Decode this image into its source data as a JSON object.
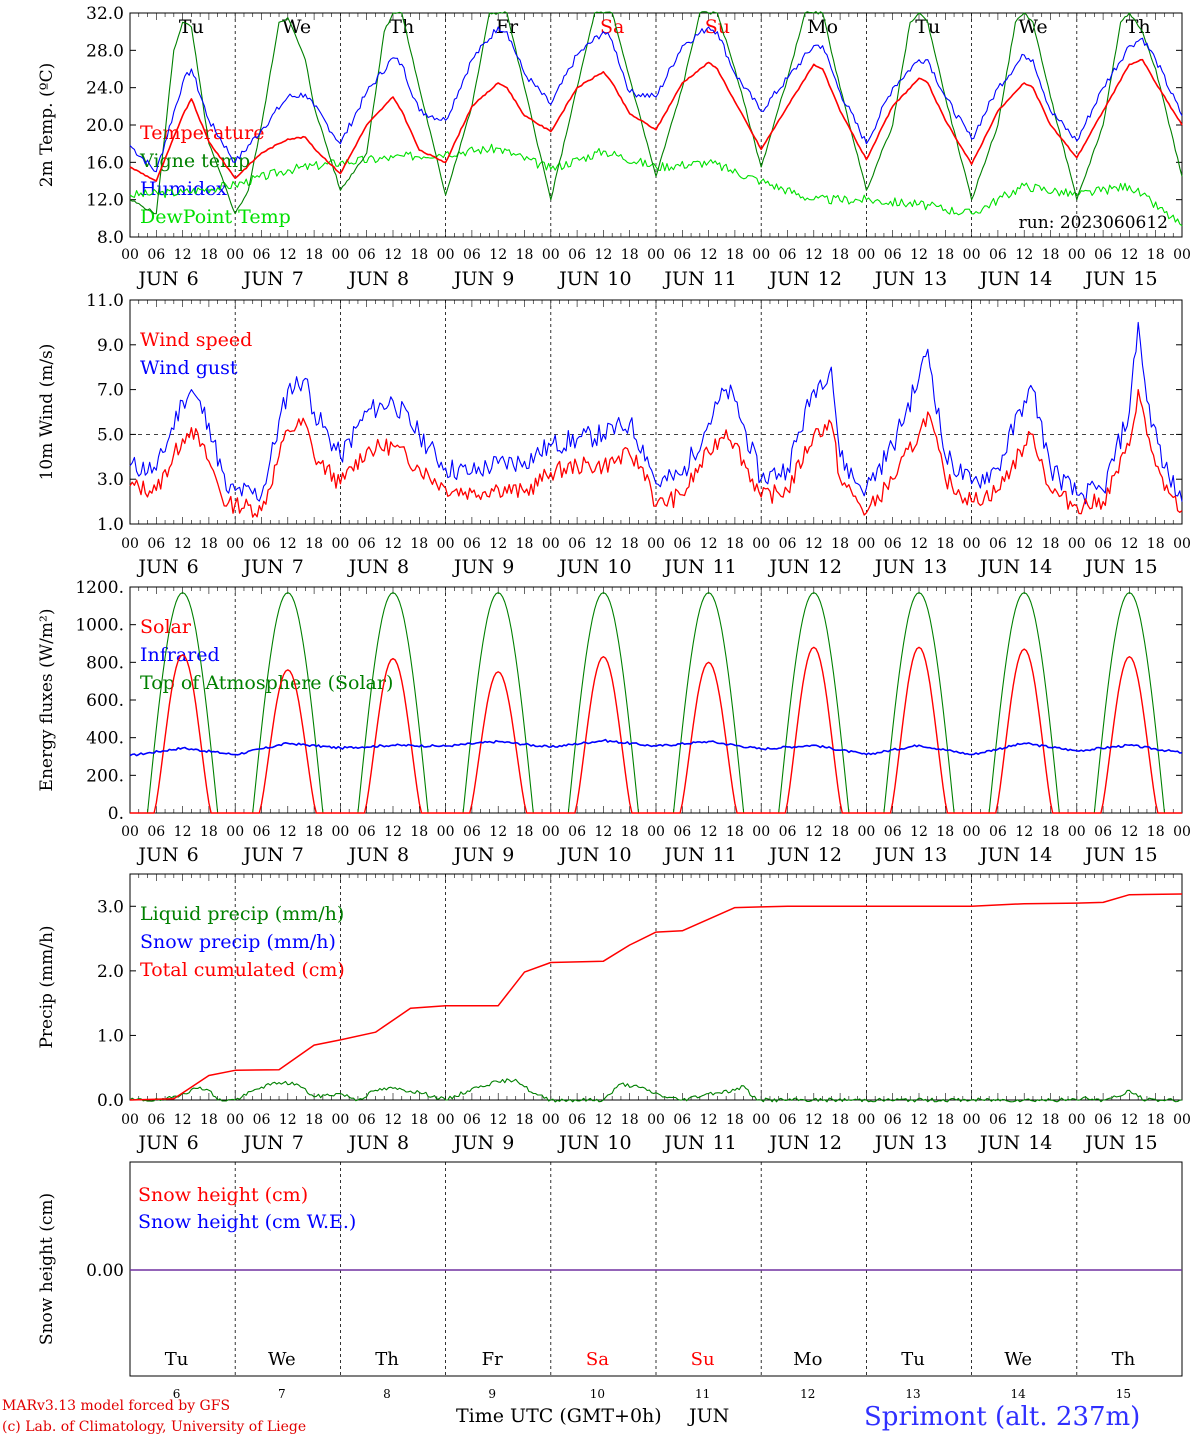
{
  "run_label": "run: 2023060612",
  "colors": {
    "temperature": "#ff0000",
    "vigne": "#008000",
    "humidex": "#0000ff",
    "dewpoint": "#00e000",
    "weekend": "#ff0000",
    "snow_axis_line": "#7030a0"
  },
  "days": [
    "6",
    "7",
    "8",
    "9",
    "10",
    "11",
    "12",
    "13",
    "14",
    "15"
  ],
  "weekdays": [
    "Tu",
    "We",
    "Th",
    "Fr",
    "Sa",
    "Su",
    "Mo",
    "Tu",
    "We",
    "Th"
  ],
  "weekend_flags": [
    false,
    false,
    false,
    false,
    true,
    true,
    false,
    false,
    false,
    false
  ],
  "month": "JUN",
  "hour_ticks": [
    "00",
    "06",
    "12",
    "18"
  ],
  "final_hour": "00",
  "footer": {
    "credit_line1": "MARv3.13 model forced by GFS",
    "credit_line2": "(c) Lab. of Climatology, University of Liege",
    "time_axis": "Time UTC (GMT+0h)",
    "month": "JUN",
    "station": "Sprimont (alt. 237m)"
  },
  "chart_data": [
    {
      "id": "temp",
      "type": "line",
      "ylabel": "2m Temp. (ºC)",
      "ylim": [
        8,
        32
      ],
      "yticks": [
        "8.0",
        "12.0",
        "16.0",
        "20.0",
        "24.0",
        "28.0",
        "32.0"
      ],
      "x_unit": "hours since Jun 6 00 UTC",
      "legend": [
        "Temperature",
        "Vigne temp",
        "Humidex",
        "DewPoint Temp"
      ],
      "series": [
        {
          "name": "Temperature",
          "x": [
            0,
            6,
            12,
            14,
            18,
            24,
            30,
            36,
            40,
            42,
            48,
            54,
            60,
            62,
            66,
            72,
            78,
            84,
            86,
            90,
            96,
            102,
            108,
            110,
            114,
            120,
            126,
            132,
            134,
            138,
            144,
            150,
            156,
            158,
            162,
            168,
            174,
            180,
            182,
            186,
            192,
            198,
            204,
            206,
            210,
            216,
            222,
            228,
            231,
            234,
            240
          ],
          "values": [
            15.5,
            14.0,
            21.0,
            22.8,
            18.2,
            14.3,
            17.0,
            18.5,
            18.7,
            17.5,
            14.8,
            20.0,
            23.0,
            21.5,
            17.3,
            16.0,
            22.0,
            24.5,
            24.0,
            21.0,
            19.3,
            24.0,
            25.7,
            24.5,
            21.2,
            19.5,
            24.5,
            26.7,
            26.0,
            22.5,
            17.4,
            22.0,
            26.5,
            26.0,
            21.5,
            16.3,
            22.0,
            25.0,
            24.5,
            20.5,
            15.8,
            21.5,
            24.5,
            24.0,
            20.0,
            16.5,
            21.5,
            26.5,
            27.0,
            24.5,
            20.0
          ]
        },
        {
          "name": "Humidex",
          "x": [
            0,
            6,
            12,
            14,
            18,
            24,
            30,
            36,
            40,
            42,
            48,
            54,
            60,
            62,
            66,
            72,
            78,
            84,
            86,
            90,
            96,
            102,
            108,
            110,
            114,
            120,
            126,
            132,
            134,
            138,
            144,
            150,
            156,
            158,
            162,
            168,
            174,
            180,
            182,
            186,
            192,
            198,
            204,
            206,
            210,
            216,
            222,
            228,
            231,
            234,
            240
          ],
          "values": [
            17.8,
            15.0,
            24.5,
            26.0,
            20.5,
            16.0,
            19.5,
            23.0,
            23.3,
            22.0,
            18.0,
            23.5,
            27.2,
            26.5,
            21.5,
            20.5,
            27.0,
            30.5,
            30.0,
            25.5,
            22.2,
            27.5,
            30.0,
            29.0,
            23.5,
            23.0,
            28.5,
            30.5,
            30.0,
            25.5,
            21.5,
            25.0,
            28.5,
            28.5,
            23.5,
            18.0,
            24.0,
            27.0,
            27.0,
            23.0,
            18.5,
            24.0,
            27.5,
            27.0,
            21.5,
            18.3,
            24.0,
            28.5,
            29.3,
            27.0,
            21.0
          ]
        },
        {
          "name": "Vigne temp",
          "x": [
            0,
            6,
            10,
            12,
            14,
            18,
            24,
            27,
            30,
            34,
            36,
            40,
            42,
            48,
            54,
            58,
            60,
            62,
            66,
            72,
            78,
            82,
            84,
            86,
            90,
            96,
            102,
            106,
            108,
            110,
            114,
            120,
            126,
            130,
            132,
            134,
            138,
            144,
            150,
            154,
            156,
            158,
            162,
            168,
            174,
            178,
            180,
            182,
            186,
            192,
            198,
            202,
            204,
            206,
            210,
            216,
            222,
            226,
            228,
            231,
            234,
            240
          ],
          "values": [
            12.0,
            10.5,
            28.0,
            31.0,
            30.5,
            18.0,
            10.5,
            13.0,
            20.0,
            31.0,
            31.5,
            27.0,
            22.0,
            13.0,
            17.0,
            30.0,
            32.0,
            32.0,
            24.0,
            12.5,
            22.0,
            32.0,
            32.0,
            32.0,
            24.0,
            12.0,
            24.0,
            32.0,
            32.0,
            32.0,
            25.0,
            14.5,
            24.0,
            32.0,
            32.0,
            32.0,
            26.0,
            15.5,
            25.0,
            32.0,
            32.0,
            32.0,
            24.0,
            13.0,
            20.0,
            31.0,
            32.0,
            31.0,
            23.0,
            12.0,
            20.0,
            31.0,
            32.0,
            31.0,
            23.0,
            12.0,
            20.0,
            31.0,
            32.0,
            30.0,
            26.0,
            14.5
          ]
        },
        {
          "name": "DewPoint Temp",
          "x": [
            0,
            12,
            24,
            36,
            48,
            60,
            72,
            84,
            96,
            108,
            120,
            132,
            144,
            156,
            168,
            180,
            192,
            204,
            216,
            228,
            240
          ],
          "values": [
            12.5,
            12.8,
            13.6,
            15.2,
            16.0,
            16.5,
            17.0,
            17.5,
            15.3,
            17.2,
            15.5,
            16.0,
            14.0,
            12.0,
            12.0,
            11.5,
            10.5,
            13.5,
            12.5,
            13.5,
            9.2
          ]
        }
      ]
    },
    {
      "id": "wind",
      "type": "line",
      "ylabel": "10m Wind (m/s)",
      "ylim": [
        1,
        11
      ],
      "yticks": [
        "1.0",
        "3.0",
        "5.0",
        "7.0",
        "9.0",
        "11.0"
      ],
      "refline": 5.0,
      "legend": [
        "Wind speed",
        "Wind gust"
      ],
      "series": [
        {
          "name": "Wind speed",
          "x": [
            0,
            6,
            12,
            14,
            18,
            22,
            24,
            30,
            36,
            40,
            42,
            48,
            54,
            60,
            66,
            72,
            78,
            84,
            90,
            96,
            102,
            108,
            114,
            118,
            120,
            126,
            132,
            136,
            138,
            144,
            150,
            156,
            160,
            162,
            166,
            168,
            174,
            180,
            182,
            186,
            192,
            198,
            204,
            206,
            210,
            216,
            222,
            228,
            230,
            232,
            236,
            240
          ],
          "values": [
            2.7,
            2.5,
            4.8,
            5.3,
            3.8,
            1.8,
            1.9,
            1.6,
            5.2,
            5.5,
            4.0,
            2.8,
            4.3,
            4.5,
            3.5,
            2.6,
            2.4,
            2.6,
            2.4,
            3.3,
            3.6,
            3.6,
            4.1,
            3.2,
            1.8,
            2.3,
            4.2,
            5.2,
            4.6,
            2.2,
            2.5,
            5.0,
            5.5,
            3.0,
            2.0,
            1.5,
            3.0,
            5.0,
            6.0,
            3.0,
            2.0,
            2.5,
            4.5,
            5.0,
            2.5,
            1.8,
            2.0,
            4.5,
            7.0,
            5.0,
            2.5,
            1.6
          ]
        },
        {
          "name": "Wind gust",
          "x": [
            0,
            6,
            12,
            14,
            18,
            22,
            24,
            30,
            36,
            40,
            42,
            48,
            54,
            60,
            66,
            72,
            78,
            84,
            90,
            96,
            102,
            108,
            114,
            118,
            120,
            126,
            132,
            136,
            138,
            144,
            150,
            156,
            160,
            162,
            166,
            168,
            174,
            180,
            182,
            186,
            192,
            198,
            204,
            206,
            210,
            216,
            222,
            228,
            230,
            232,
            236,
            240
          ],
          "values": [
            3.6,
            3.4,
            6.5,
            7.0,
            5.5,
            2.5,
            2.5,
            2.3,
            7.0,
            7.5,
            6.0,
            4.0,
            6.0,
            6.5,
            5.0,
            3.5,
            3.3,
            3.7,
            3.8,
            4.5,
            4.8,
            5.0,
            5.5,
            4.0,
            2.8,
            3.2,
            5.5,
            7.0,
            6.5,
            3.0,
            3.5,
            7.0,
            8.0,
            4.0,
            2.8,
            2.6,
            4.5,
            7.5,
            8.8,
            4.0,
            2.8,
            3.5,
            6.5,
            7.0,
            3.5,
            2.3,
            2.5,
            6.0,
            10.0,
            6.5,
            3.5,
            2.0
          ]
        }
      ]
    },
    {
      "id": "flux",
      "type": "line",
      "ylabel": "Energy fluxes (W/m²)",
      "ylim": [
        0,
        1200
      ],
      "yticks": [
        "0.",
        "200.",
        "400.",
        "600.",
        "800.",
        "1000.",
        "1200."
      ],
      "legend": [
        "Solar",
        "Infrared",
        "Top of Atmosphere (Solar)"
      ],
      "toa_peak": 1170,
      "solar_peaks": [
        840,
        760,
        820,
        750,
        830,
        800,
        880,
        880,
        870,
        830
      ],
      "series": [
        {
          "name": "Infrared",
          "x": [
            0,
            12,
            24,
            36,
            48,
            60,
            72,
            84,
            96,
            108,
            120,
            132,
            144,
            156,
            168,
            180,
            192,
            204,
            216,
            228,
            240
          ],
          "values": [
            305,
            345,
            310,
            370,
            345,
            360,
            355,
            380,
            350,
            385,
            355,
            380,
            340,
            360,
            310,
            360,
            310,
            370,
            330,
            360,
            320
          ]
        }
      ]
    },
    {
      "id": "precip",
      "type": "line",
      "ylabel": "Precip (mm/h)",
      "ylim": [
        0,
        3.5
      ],
      "yticks": [
        "0.0",
        "1.0",
        "2.0",
        "3.0"
      ],
      "legend": [
        "Liquid precip (mm/h)",
        "Snow precip (mm/h)",
        "Total cumulated (cm)"
      ],
      "series": [
        {
          "name": "Total cumulated (cm)",
          "x": [
            0,
            10,
            14,
            18,
            24,
            34,
            42,
            48,
            56,
            64,
            72,
            84,
            90,
            96,
            108,
            114,
            120,
            126,
            132,
            138,
            144,
            150,
            168,
            180,
            192,
            204,
            216,
            222,
            228,
            240
          ],
          "values": [
            0,
            0.02,
            0.2,
            0.38,
            0.46,
            0.47,
            0.85,
            0.93,
            1.05,
            1.42,
            1.46,
            1.46,
            1.98,
            2.13,
            2.15,
            2.4,
            2.6,
            2.62,
            2.8,
            2.98,
            2.99,
            3.0,
            3.0,
            3.0,
            3.0,
            3.04,
            3.05,
            3.06,
            3.18,
            3.19
          ]
        },
        {
          "name": "Liquid precip (mm/h)",
          "x": [
            0,
            8,
            12,
            16,
            18,
            20,
            24,
            30,
            34,
            38,
            42,
            48,
            52,
            56,
            60,
            66,
            72,
            80,
            84,
            88,
            92,
            96,
            108,
            112,
            116,
            122,
            126,
            132,
            138,
            140,
            142,
            144,
            216,
            218,
            220,
            222,
            226,
            228,
            230,
            232,
            240
          ],
          "values": [
            0,
            0,
            0.1,
            0.2,
            0.15,
            0,
            0,
            0.2,
            0.27,
            0.25,
            0.05,
            0.1,
            0,
            0.15,
            0.18,
            0.12,
            0,
            0.22,
            0.28,
            0.32,
            0.1,
            0,
            0,
            0.25,
            0.2,
            0.05,
            0,
            0.1,
            0.15,
            0.22,
            0.05,
            0,
            0,
            0.05,
            0,
            0,
            0.06,
            0.15,
            0.05,
            0,
            0
          ]
        }
      ]
    },
    {
      "id": "snow",
      "type": "line",
      "ylabel": "Snow height (cm)",
      "yticks": [
        "0.00"
      ],
      "legend": [
        "Snow height (cm)",
        "Snow height (cm W.E.)"
      ],
      "series": [
        {
          "name": "Snow height (cm)",
          "x": [
            0,
            240
          ],
          "values": [
            0.0,
            0.0
          ]
        },
        {
          "name": "Snow height (cm W.E.)",
          "x": [
            0,
            240
          ],
          "values": [
            0.0,
            0.0
          ]
        }
      ]
    }
  ]
}
